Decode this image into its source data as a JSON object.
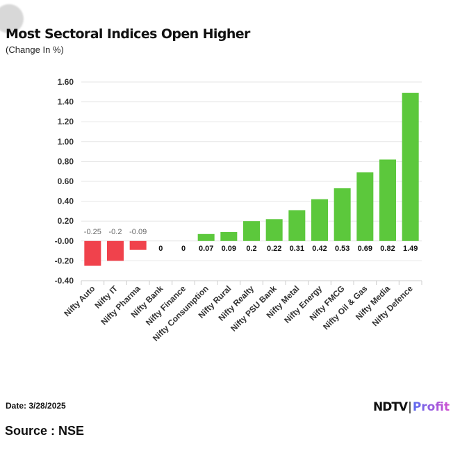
{
  "header": {
    "title": "Most Sectoral Indices Open Higher",
    "subtitle": "(Change In %)"
  },
  "footer": {
    "date": "Date: 3/28/2025",
    "source": "Source : NSE",
    "logo": "NDTV Profit"
  },
  "colors": {
    "positive": "#5cc83c",
    "negative": "#f0424c",
    "grid": "#e6e6e6"
  },
  "chart_data": {
    "type": "bar",
    "title": "Most Sectoral Indices Open Higher",
    "ylabel": "(Change In %)",
    "categories": [
      "Nifty Auto",
      "Nifty IT",
      "Nifty Pharma",
      "Nifty Bank",
      "Nifty Finance",
      "Nifty Consumption",
      "Nifty Rural",
      "Nifty Realty",
      "Nifty PSU Bank",
      "Nifty Metal",
      "Nifty Energy",
      "Nifty FMCG",
      "Nifty Oil & Gas",
      "Nifty Media",
      "Nifty Defence"
    ],
    "values": [
      -0.25,
      -0.2,
      -0.09,
      0,
      0,
      0.07,
      0.09,
      0.2,
      0.22,
      0.31,
      0.42,
      0.53,
      0.69,
      0.82,
      1.49
    ],
    "data_labels": [
      "-0.25",
      "-0.2",
      "-0.09",
      "0",
      "0",
      "0.07",
      "0.09",
      "0.2",
      "0.22",
      "0.31",
      "0.42",
      "0.53",
      "0.69",
      "0.82",
      "1.49"
    ],
    "ylim": [
      -0.4,
      1.6
    ],
    "yticks": [
      "1.60",
      "1.40",
      "1.20",
      "1.00",
      "0.80",
      "0.60",
      "0.40",
      "0.20",
      "-0.00",
      "-0.20",
      "-0.40"
    ],
    "grid": true,
    "legend": "none"
  }
}
